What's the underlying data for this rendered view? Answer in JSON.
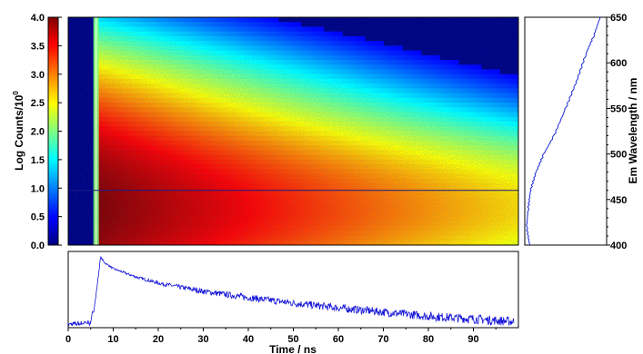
{
  "chart_data": [
    {
      "type": "colorbar",
      "ylabel": "Log Counts/10",
      "ylabel_superscript": "0",
      "ylim": [
        0.0,
        4.0
      ],
      "ticks": [
        "0.0",
        "0.5",
        "1.0",
        "1.5",
        "2.0",
        "2.5",
        "3.0",
        "3.5",
        "4.0"
      ],
      "colormap": [
        "#000080",
        "#0000ff",
        "#0080ff",
        "#00ffff",
        "#80ff80",
        "#ffff00",
        "#ff8000",
        "#ff0000",
        "#800000"
      ]
    },
    {
      "type": "heatmap",
      "xlim": [
        0,
        100
      ],
      "ylim": [
        400,
        650
      ],
      "x_ticks": [
        "0",
        "10",
        "20",
        "30",
        "40",
        "50",
        "60",
        "70",
        "80",
        "90"
      ],
      "y_ticks": [
        "400",
        "450",
        "500",
        "550",
        "600",
        "650"
      ],
      "ylabel": "Em Wavelength / nm",
      "excitation_time_ns": 6.2,
      "selected_wavelength_nm": 460,
      "peak_wavelength_nm": 440,
      "description_values": {
        "pulse_rise_ns": 6,
        "peak_log_counts": 4.0
      }
    },
    {
      "type": "line",
      "name": "decay-trace",
      "xlabel": "Time / ns",
      "xlim": [
        0,
        100
      ],
      "x_ticks": [
        "0",
        "10",
        "20",
        "30",
        "40",
        "50",
        "60",
        "70",
        "80",
        "90"
      ],
      "rise_ns": 6.0,
      "peak_ns": 7.2,
      "points": [
        [
          0,
          0.02
        ],
        [
          5,
          0.05
        ],
        [
          6,
          0.35
        ],
        [
          7.2,
          1.0
        ],
        [
          8,
          0.92
        ],
        [
          10,
          0.83
        ],
        [
          15,
          0.71
        ],
        [
          20,
          0.62
        ],
        [
          30,
          0.5
        ],
        [
          40,
          0.41
        ],
        [
          50,
          0.33
        ],
        [
          60,
          0.26
        ],
        [
          70,
          0.2
        ],
        [
          80,
          0.14
        ],
        [
          90,
          0.1
        ],
        [
          99,
          0.06
        ]
      ]
    },
    {
      "type": "line",
      "name": "emission-spectrum",
      "ylim": [
        400,
        650
      ],
      "points": [
        [
          400,
          0.04
        ],
        [
          420,
          0.0
        ],
        [
          440,
          0.02
        ],
        [
          460,
          0.05
        ],
        [
          480,
          0.12
        ],
        [
          500,
          0.22
        ],
        [
          520,
          0.35
        ],
        [
          550,
          0.5
        ],
        [
          580,
          0.64
        ],
        [
          610,
          0.76
        ],
        [
          630,
          0.86
        ],
        [
          650,
          0.94
        ]
      ]
    }
  ]
}
